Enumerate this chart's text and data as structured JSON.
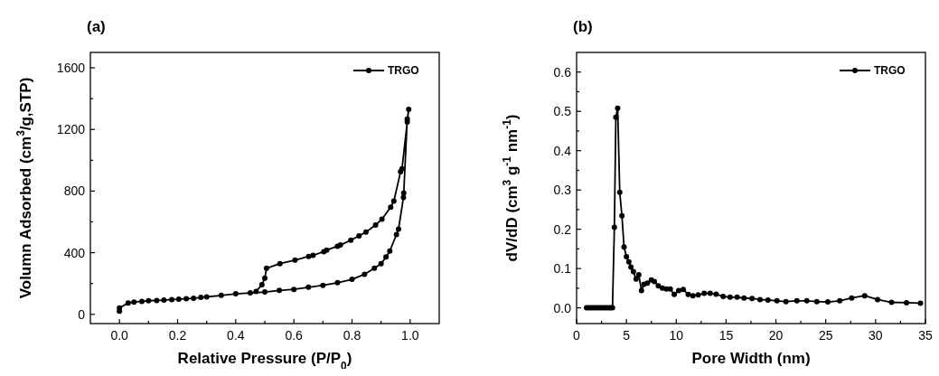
{
  "chart_data": [
    {
      "type": "line",
      "title": "(a)",
      "xlabel": "Relative Pressure (P/P$_{0}$)",
      "ylabel": "Volumn Adsorbed (cm$^{3}$/g,STP)",
      "xlim": [
        -0.1,
        1.1
      ],
      "ylim": [
        -60,
        1700
      ],
      "xticks": [
        {
          "value": 0,
          "label": "0.0"
        },
        {
          "value": 0.1,
          "label": null
        },
        {
          "value": 0.2,
          "label": "0.2"
        },
        {
          "value": 0.3,
          "label": null
        },
        {
          "value": 0.4,
          "label": "0.4"
        },
        {
          "value": 0.5,
          "label": null
        },
        {
          "value": 0.6,
          "label": "0.6"
        },
        {
          "value": 0.7,
          "label": null
        },
        {
          "value": 0.8,
          "label": "0.8"
        },
        {
          "value": 0.9,
          "label": null
        },
        {
          "value": 1.0,
          "label": "1.0"
        }
      ],
      "yticks": [
        0,
        {
          "value": 200,
          "label": null
        },
        400,
        {
          "value": 600,
          "label": null
        },
        800,
        {
          "value": 1000,
          "label": null
        },
        1200,
        {
          "value": 1400,
          "label": null
        },
        1600
      ],
      "marker": "circle",
      "legend": "top right",
      "series": [
        {
          "name": "TRGO",
          "color": "#000000",
          "x": [
            0,
            0,
            0.03,
            0.05,
            0.077,
            0.1,
            0.128,
            0.153,
            0.18,
            0.204,
            0.23,
            0.255,
            0.28,
            0.3,
            0.35,
            0.4,
            0.45,
            0.5,
            0.55,
            0.6,
            0.65,
            0.7,
            0.75,
            0.8,
            0.843,
            0.877,
            0.9,
            0.917,
            0.93,
            0.953,
            0.96,
            0.977,
            0.978,
            0.99,
            0.995,
            0.99,
            0.972,
            0.967,
            0.944,
            0.933,
            0.903,
            0.881,
            0.848,
            0.824,
            0.796,
            0.76,
            0.75,
            0.713,
            0.703,
            0.666,
            0.651,
            0.604,
            0.552,
            0.506,
            0.5,
            0.49,
            0.47
          ],
          "values": [
            20,
            41,
            74,
            80,
            84,
            88,
            90,
            92,
            96,
            98,
            102,
            104,
            110,
            113,
            123,
            133,
            139,
            145,
            155,
            162,
            176,
            188,
            205,
            227,
            260,
            299,
            329,
            372,
            411,
            518,
            553,
            759,
            788,
            1267,
            1330,
            1248,
            945,
            925,
            735,
            696,
            618,
            579,
            534,
            509,
            481,
            450,
            442,
            417,
            407,
            383,
            376,
            352,
            329,
            299,
            235,
            192,
            149
          ]
        }
      ]
    },
    {
      "type": "line",
      "title": "(b)",
      "xlabel": "Pore Width (nm)",
      "ylabel": "dV/dD (cm$^{3}$ g$^{-1}$ nm$^{-1}$)",
      "xlim": [
        0,
        35
      ],
      "ylim": [
        -0.04,
        0.65
      ],
      "xticks": [
        0,
        {
          "value": 2.5,
          "label": null
        },
        5,
        {
          "value": 7.5,
          "label": null
        },
        10,
        {
          "value": 12.5,
          "label": null
        },
        15,
        {
          "value": 17.5,
          "label": null
        },
        20,
        {
          "value": 22.5,
          "label": null
        },
        25,
        {
          "value": 27.5,
          "label": null
        },
        30,
        {
          "value": 32.5,
          "label": null
        },
        35
      ],
      "yticks": [
        {
          "value": 0,
          "label": "0.0"
        },
        {
          "value": 0.05,
          "label": null
        },
        0.1,
        {
          "value": 0.15,
          "label": null
        },
        0.2,
        {
          "value": 0.25,
          "label": null
        },
        0.3,
        {
          "value": 0.35,
          "label": null
        },
        0.4,
        {
          "value": 0.45,
          "label": null
        },
        0.5,
        {
          "value": 0.55,
          "label": null
        },
        0.6
      ],
      "marker": "circle",
      "legend": "top right",
      "series": [
        {
          "name": "TRGO",
          "color": "#000000",
          "x": [
            1.0,
            1.2,
            1.4,
            1.6,
            1.8,
            2.0,
            2.2,
            2.4,
            2.6,
            2.8,
            3.0,
            3.2,
            3.4,
            3.6,
            3.79,
            3.94,
            4.12,
            4.33,
            4.55,
            4.76,
            5.0,
            5.24,
            5.45,
            5.7,
            5.97,
            6.24,
            6.51,
            6.76,
            7.1,
            7.5,
            7.8,
            8.2,
            8.6,
            9.0,
            9.4,
            9.8,
            10.24,
            10.7,
            11.2,
            11.67,
            12.2,
            12.8,
            13.4,
            14.0,
            14.7,
            15.4,
            16.1,
            16.8,
            17.6,
            18.4,
            19.2,
            20.1,
            21.0,
            22.1,
            23.1,
            24.1,
            25.2,
            26.4,
            27.6,
            28.9,
            30.2,
            31.6,
            33.1,
            34.5
          ],
          "values": [
            0,
            0,
            0,
            0,
            0,
            0,
            0,
            0,
            0,
            0,
            0,
            0,
            0,
            0,
            0.205,
            0.485,
            0.508,
            0.294,
            0.234,
            0.155,
            0.13,
            0.117,
            0.104,
            0.092,
            0.073,
            0.084,
            0.044,
            0.06,
            0.063,
            0.071,
            0.067,
            0.056,
            0.05,
            0.048,
            0.048,
            0.034,
            0.044,
            0.047,
            0.034,
            0.031,
            0.033,
            0.037,
            0.037,
            0.035,
            0.029,
            0.027,
            0.027,
            0.025,
            0.024,
            0.021,
            0.02,
            0.018,
            0.016,
            0.018,
            0.018,
            0.016,
            0.015,
            0.018,
            0.025,
            0.031,
            0.021,
            0.014,
            0.013,
            0.012
          ]
        }
      ]
    }
  ]
}
